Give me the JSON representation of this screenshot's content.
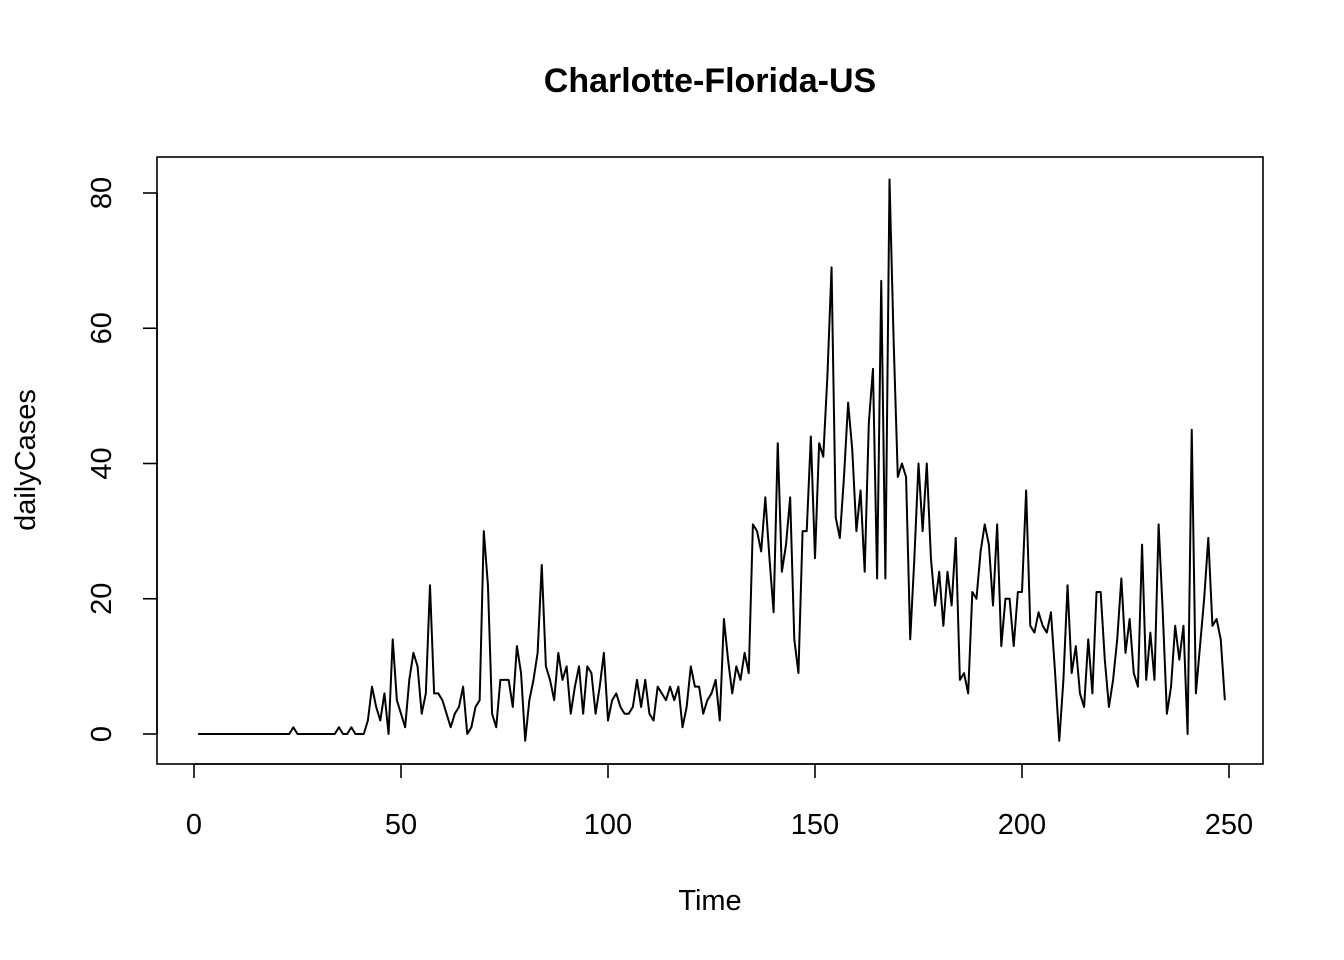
{
  "chart_data": {
    "type": "line",
    "title": "Charlotte-Florida-US",
    "xlabel": "Time",
    "ylabel": "dailyCases",
    "xlim": [
      1,
      248
    ],
    "ylim": [
      -1,
      82
    ],
    "xticks": [
      "0",
      "50",
      "100",
      "150",
      "200",
      "250"
    ],
    "yticks": [
      "0",
      "20",
      "40",
      "60",
      "80"
    ],
    "grid": false,
    "legend": "none",
    "line_color": "#000000",
    "x_start": 1,
    "values": [
      0,
      0,
      0,
      0,
      0,
      0,
      0,
      0,
      0,
      0,
      0,
      0,
      0,
      0,
      0,
      0,
      0,
      0,
      0,
      0,
      0,
      0,
      0,
      1,
      0,
      0,
      0,
      0,
      0,
      0,
      0,
      0,
      0,
      0,
      1,
      0,
      0,
      1,
      0,
      0,
      0,
      2,
      7,
      4,
      2,
      6,
      0,
      14,
      5,
      3,
      1,
      8,
      12,
      10,
      3,
      6,
      22,
      6,
      6,
      5,
      3,
      1,
      3,
      4,
      7,
      0,
      1,
      4,
      5,
      30,
      22,
      3,
      1,
      8,
      8,
      8,
      4,
      13,
      9,
      -1,
      5,
      8,
      12,
      25,
      10,
      8,
      5,
      12,
      8,
      10,
      3,
      7,
      10,
      3,
      10,
      9,
      3,
      7,
      12,
      2,
      5,
      6,
      4,
      3,
      3,
      4,
      8,
      4,
      8,
      3,
      2,
      7,
      6,
      5,
      7,
      5,
      7,
      1,
      4,
      10,
      7,
      7,
      3,
      5,
      6,
      8,
      2,
      17,
      11,
      6,
      10,
      8,
      12,
      9,
      31,
      30,
      27,
      35,
      26,
      18,
      43,
      24,
      28,
      35,
      14,
      9,
      30,
      30,
      44,
      26,
      43,
      41,
      53,
      69,
      32,
      29,
      38,
      49,
      42,
      30,
      36,
      24,
      46,
      54,
      23,
      67,
      23,
      82,
      58,
      38,
      40,
      38,
      14,
      26,
      40,
      30,
      40,
      26,
      19,
      24,
      16,
      24,
      19,
      29,
      8,
      9,
      6,
      21,
      20,
      27,
      31,
      28,
      19,
      31,
      13,
      20,
      20,
      13,
      21,
      21,
      36,
      16,
      15,
      18,
      16,
      15,
      18,
      9,
      -1,
      8,
      22,
      9,
      13,
      6,
      4,
      14,
      6,
      21,
      21,
      11,
      4,
      8,
      14,
      23,
      12,
      17,
      9,
      7,
      28,
      8,
      15,
      8,
      31,
      18,
      3,
      7,
      16,
      11,
      16,
      0,
      45,
      6,
      13,
      20,
      29,
      16,
      17,
      14,
      5
    ]
  }
}
